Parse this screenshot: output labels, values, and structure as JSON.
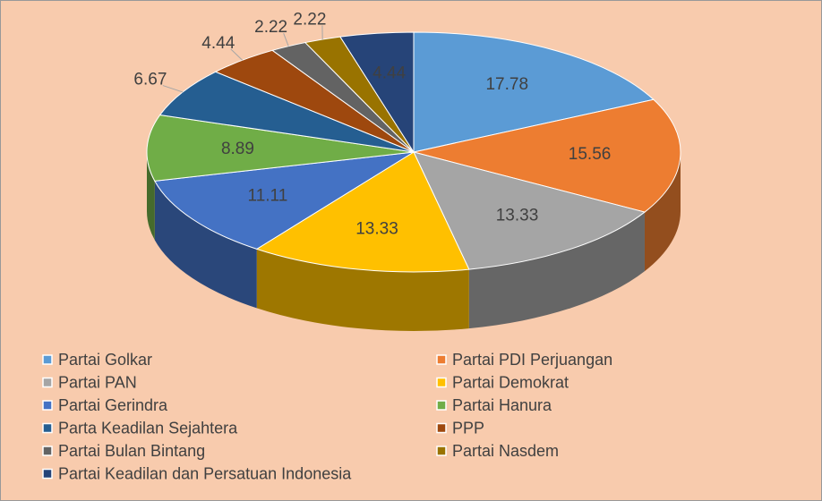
{
  "chart_data": {
    "type": "pie",
    "categories": [
      "Partai Golkar",
      "Partai PDI Perjuangan",
      "Partai PAN",
      "Partai Demokrat",
      "Partai Gerindra",
      "Partai Hanura",
      "Parta Keadilan Sejahtera",
      "PPP",
      "Partai Bulan Bintang",
      "Partai Nasdem",
      "Partai Keadilan dan Persatuan Indonesia"
    ],
    "values": [
      17.78,
      15.56,
      13.33,
      13.33,
      11.11,
      8.89,
      6.67,
      4.44,
      2.22,
      2.22,
      4.44
    ],
    "colors": [
      "#5b9bd5",
      "#ed7d31",
      "#a5a5a5",
      "#ffc000",
      "#4472c4",
      "#70ad47",
      "#255e91",
      "#9e480e",
      "#636363",
      "#997300",
      "#264478"
    ],
    "legend": "bottom"
  }
}
